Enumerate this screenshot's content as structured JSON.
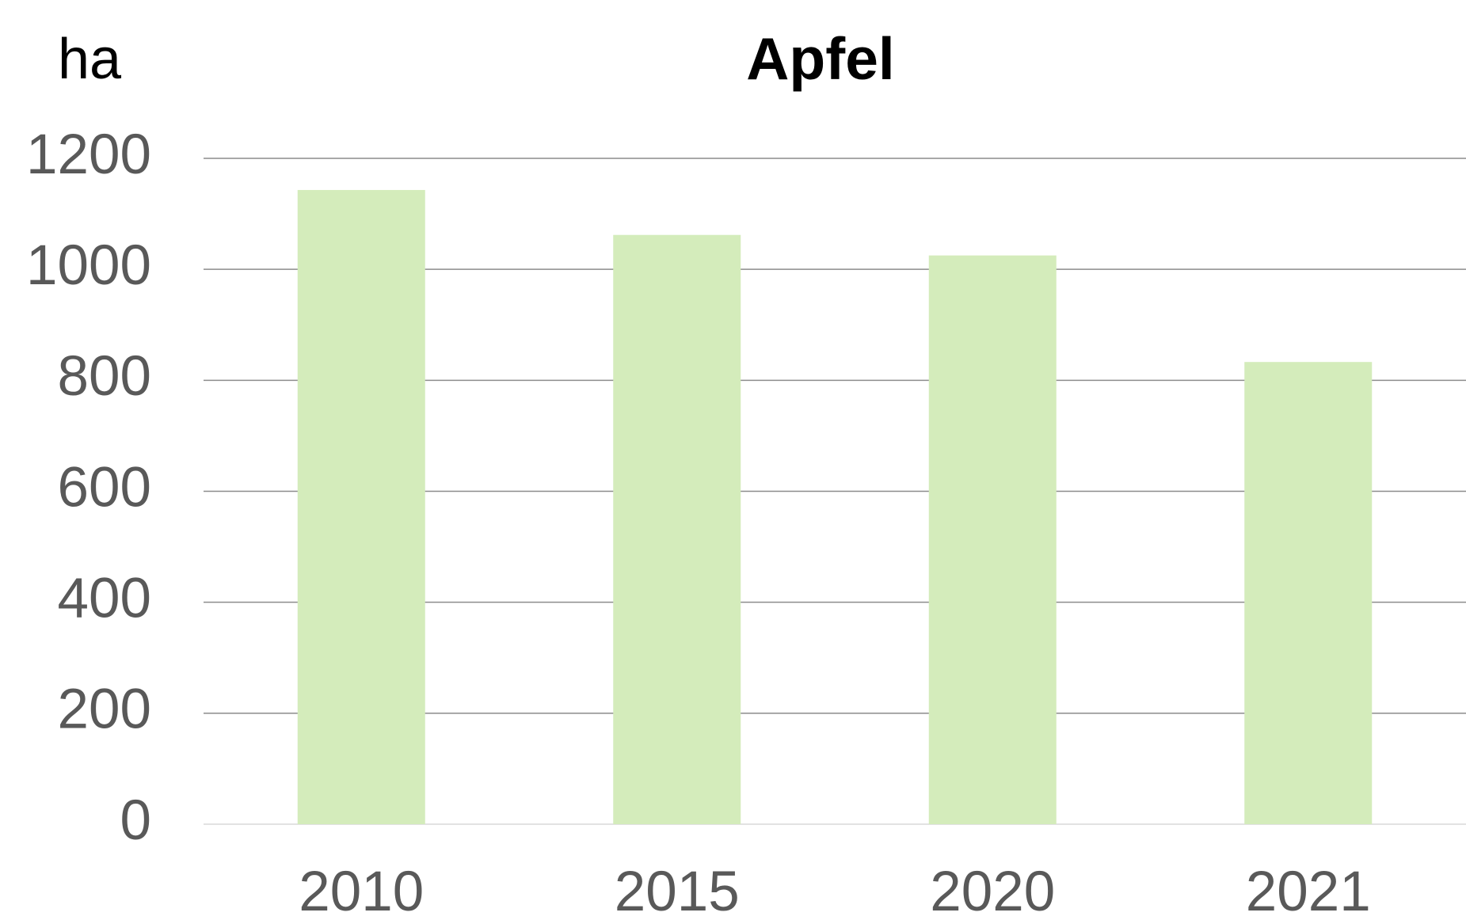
{
  "chart_data": {
    "type": "bar",
    "title": "Apfel",
    "y_axis_label": "ha",
    "categories": [
      "2010",
      "2015",
      "2020",
      "2021"
    ],
    "values": [
      1143,
      1062,
      1025,
      833
    ],
    "color": "#d4ecbb",
    "ylim": [
      0,
      1200
    ],
    "yticks": [
      0,
      200,
      400,
      600,
      800,
      1000,
      1200
    ],
    "grid": true
  }
}
